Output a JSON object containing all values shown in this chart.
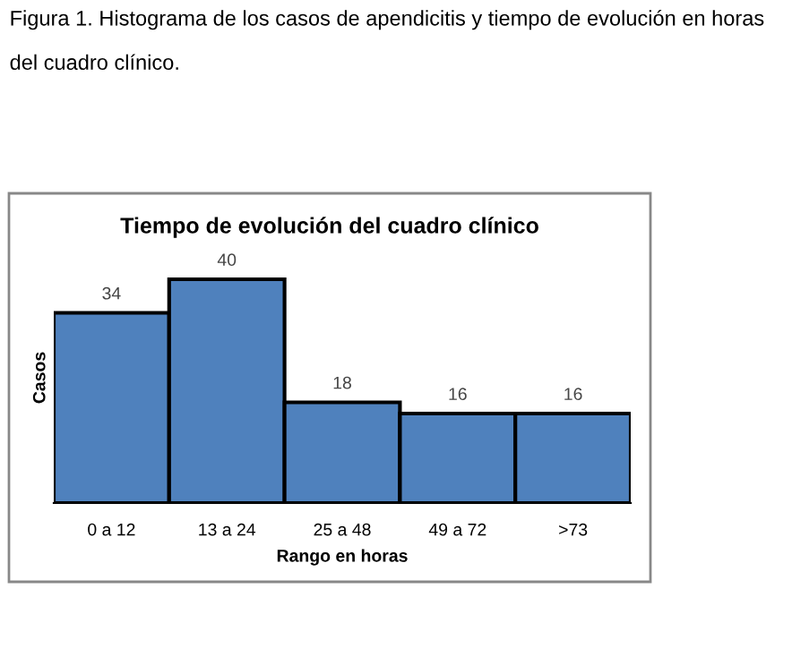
{
  "chart_data": {
    "type": "bar",
    "title": "Tiempo de evolución del cuadro clínico",
    "xlabel": "Rango en horas",
    "ylabel": "Casos",
    "annotations": [
      "Figura 1. Histograma de los casos de apendicitis y tiempo de evolución en horas del cuadro clínico."
    ],
    "categories": [
      "0 a 12",
      "13 a 24",
      "25 a 48",
      "49 a 72",
      ">73"
    ],
    "values": [
      34,
      40,
      18,
      16,
      16
    ],
    "color": "#4f81bd",
    "data_labels": true,
    "grid": false,
    "legend": false
  }
}
